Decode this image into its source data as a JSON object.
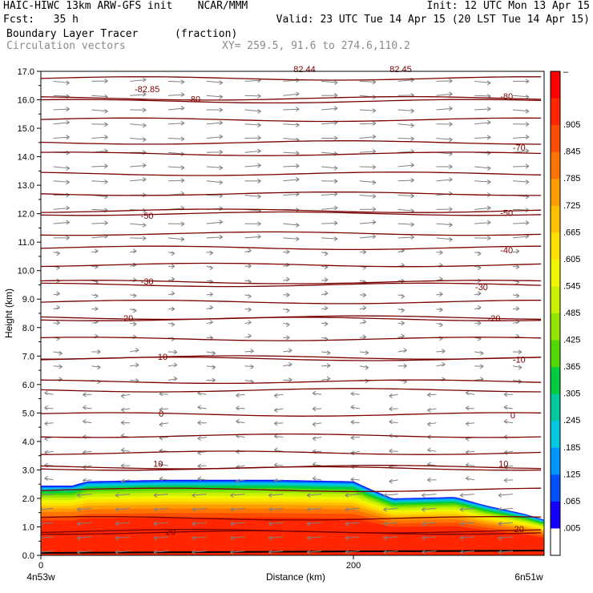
{
  "header": {
    "line1_left": "HAIC-HIWC 13km ARW-GFS init    NCAR/MMM",
    "line1_right": "Init: 12 UTC Mon 13 Apr 15",
    "line2_left": "Fcst:   35 h",
    "line2_right": "Valid: 23 UTC Tue 14 Apr 15 (20 LST Tue 14 Apr 15)",
    "line3_left": "Boundary Layer Tracer",
    "line3_units": "(fraction)",
    "line4_left": "Circulation vectors",
    "line4_xy": "XY= 259.5, 91.6 to 274.6,110.2"
  },
  "chart_data": {
    "type": "contour-cross-section",
    "xlabel": "Distance (km)",
    "ylabel": "Height (km)",
    "x_ticks": [
      "0",
      "200"
    ],
    "x_end_labels": {
      "left": "4n53w",
      "right": "6n51w"
    },
    "xlim": [
      0,
      322
    ],
    "ylim": [
      0.0,
      17.0
    ],
    "y_ticks": [
      "0.0",
      "1.0",
      "2.0",
      "3.0",
      "4.0",
      "5.0",
      "6.0",
      "7.0",
      "8.0",
      "9.0",
      "10.0",
      "11.0",
      "12.0",
      "13.0",
      "14.0",
      "15.0",
      "16.0",
      "17.0"
    ],
    "colorbar_labels": [
      "–",
      ".905",
      ".845",
      ".785",
      ".725",
      ".665",
      ".605",
      ".545",
      ".485",
      ".425",
      ".365",
      ".305",
      ".245",
      ".185",
      ".125",
      ".065",
      ".005"
    ],
    "colorbar_colors": [
      "#ff0000",
      "#ff2600",
      "#ff4d00",
      "#ff7300",
      "#ff9a00",
      "#ffc000",
      "#ffe100",
      "#f0f500",
      "#c8f000",
      "#90e600",
      "#50d800",
      "#00cc40",
      "#00c8a0",
      "#00c8e0",
      "#0096ff",
      "#0050ff",
      "#1400ff",
      "#ffffff"
    ],
    "boundary_layer_top_km": [
      {
        "x": 0,
        "y": 2.45
      },
      {
        "x": 20,
        "y": 2.45
      },
      {
        "x": 30,
        "y": 2.6
      },
      {
        "x": 80,
        "y": 2.65
      },
      {
        "x": 150,
        "y": 2.65
      },
      {
        "x": 200,
        "y": 2.6
      },
      {
        "x": 210,
        "y": 2.35
      },
      {
        "x": 225,
        "y": 2.0
      },
      {
        "x": 265,
        "y": 2.05
      },
      {
        "x": 285,
        "y": 1.75
      },
      {
        "x": 310,
        "y": 1.45
      },
      {
        "x": 322,
        "y": 1.25
      }
    ],
    "temperature_contours": [
      {
        "label": "-82.85",
        "y_km": 16.75,
        "label_x": 68,
        "label_y_km": 16.35
      },
      {
        "label": "-80",
        "y_km": 15.95,
        "label_x": 98,
        "label_y_km": 16.0
      },
      {
        "label": "-80",
        "y_km": 16.05,
        "label_x": 298,
        "label_y_km": 16.1
      },
      {
        "label": "-70",
        "y_km": 14.5,
        "label_x": 306,
        "label_y_km": 14.3
      },
      {
        "label": "-50",
        "y_km": 12.0,
        "label_x": 68,
        "label_y_km": 11.9
      },
      {
        "label": "-50",
        "y_km": 12.1,
        "label_x": 298,
        "label_y_km": 12.0
      },
      {
        "label": "-40",
        "y_km": 10.8,
        "label_x": 298,
        "label_y_km": 10.7
      },
      {
        "label": "-30",
        "y_km": 9.6,
        "label_x": 68,
        "label_y_km": 9.6
      },
      {
        "label": "-30",
        "y_km": 9.5,
        "label_x": 282,
        "label_y_km": 9.4
      },
      {
        "label": "-20",
        "y_km": 8.35,
        "label_x": 55,
        "label_y_km": 8.3
      },
      {
        "label": "-20",
        "y_km": 8.3,
        "label_x": 290,
        "label_y_km": 8.3
      },
      {
        "label": "-10",
        "y_km": 6.95,
        "label_x": 77,
        "label_y_km": 6.95
      },
      {
        "label": "-10",
        "y_km": 6.9,
        "label_x": 306,
        "label_y_km": 6.85
      },
      {
        "label": "0",
        "y_km": 4.95,
        "label_x": 77,
        "label_y_km": 4.95
      },
      {
        "label": "0",
        "y_km": 4.95,
        "label_x": 302,
        "label_y_km": 4.9
      },
      {
        "label": "10",
        "y_km": 3.1,
        "label_x": 75,
        "label_y_km": 3.2
      },
      {
        "label": "10",
        "y_km": 3.05,
        "label_x": 296,
        "label_y_km": 3.2
      },
      {
        "label": "20",
        "y_km": 0.8,
        "label_x": 83,
        "label_y_km": 0.8
      },
      {
        "label": "20",
        "y_km": 0.85,
        "label_x": 306,
        "label_y_km": 0.9
      }
    ],
    "unlabeled_contour_heights_km": [
      15.3,
      14.1,
      13.4,
      12.7,
      11.3,
      10.2,
      8.9,
      7.6,
      6.1,
      5.8,
      4.2,
      3.6,
      2.3,
      1.3
    ],
    "top_partial_labels": [
      "82.44",
      "82.45"
    ]
  }
}
